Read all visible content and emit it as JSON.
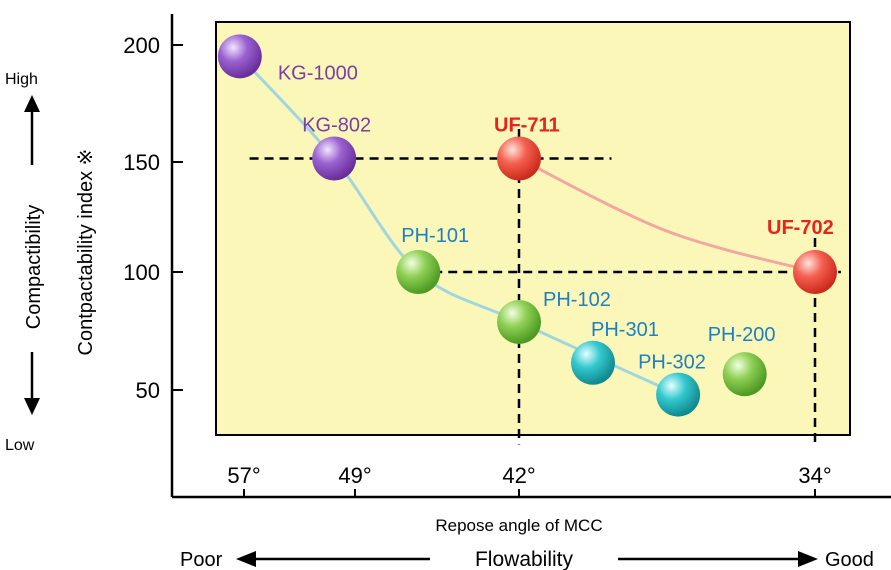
{
  "chart_data": {
    "type": "scatter",
    "y_axis": {
      "title": "Contpactability  index ※",
      "ticks": [
        200,
        150,
        100,
        50
      ]
    },
    "x_axis": {
      "title": "Repose angle of MCC",
      "ticks": [
        "57°",
        "49°",
        "42°",
        "34°"
      ]
    },
    "compactibility": {
      "label": "Compactibility",
      "high": "High",
      "low": "Low"
    },
    "flowability": {
      "label": "Flowability",
      "poor": "Poor",
      "good": "Good"
    },
    "points": [
      {
        "name": "KG-1000",
        "x": 57.3,
        "y": 195,
        "label_color": "#7c3fa3",
        "color": "#8a4fc0"
      },
      {
        "name": "KG-802",
        "x": 50.5,
        "y": 150,
        "label_color": "#7c3fa3",
        "color": "#8a4fc0"
      },
      {
        "name": "UF-711",
        "x": 42.0,
        "y": 150,
        "label_color": "#e8231d",
        "color": "#ef4a3c"
      },
      {
        "name": "PH-101",
        "x": 46.3,
        "y": 100,
        "label_color": "#1e7fc2",
        "color": "#7cc242"
      },
      {
        "name": "PH-102",
        "x": 42.0,
        "y": 78,
        "label_color": "#1e7fc2",
        "color": "#7cc242"
      },
      {
        "name": "PH-301",
        "x": 40.0,
        "y": 60,
        "label_color": "#1e7fc2",
        "color": "#1ec2c7"
      },
      {
        "name": "PH-302",
        "x": 37.7,
        "y": 46,
        "label_color": "#1e7fc2",
        "color": "#1ec2c7"
      },
      {
        "name": "PH-200",
        "x": 35.9,
        "y": 55,
        "label_color": "#1e7fc2",
        "color": "#7cc242"
      },
      {
        "name": "UF-702",
        "x": 34.0,
        "y": 100,
        "label_color": "#e8231d",
        "color": "#ef4a3c"
      }
    ],
    "curves": [
      {
        "color": "#9fd6df",
        "points": [
          [
            57.3,
            195
          ],
          [
            50.5,
            150
          ],
          [
            46.3,
            100
          ],
          [
            42.0,
            78
          ],
          [
            37.7,
            46
          ]
        ]
      },
      {
        "color": "#f3a7a2",
        "points": [
          [
            42.0,
            150
          ],
          [
            38.0,
            118
          ],
          [
            34.0,
            100
          ]
        ]
      }
    ],
    "reference_lines": [
      {
        "orientation": "h",
        "value": 150,
        "from": 56.6,
        "to": 39.5
      },
      {
        "orientation": "h",
        "value": 100,
        "from": 46.3,
        "to": 33.3
      },
      {
        "orientation": "v",
        "value": 42.0,
        "from": 163,
        "to": 24
      },
      {
        "orientation": "v",
        "value": 34.0,
        "from": 115,
        "to": 24
      }
    ],
    "plot_background": "#fbf7b8"
  }
}
